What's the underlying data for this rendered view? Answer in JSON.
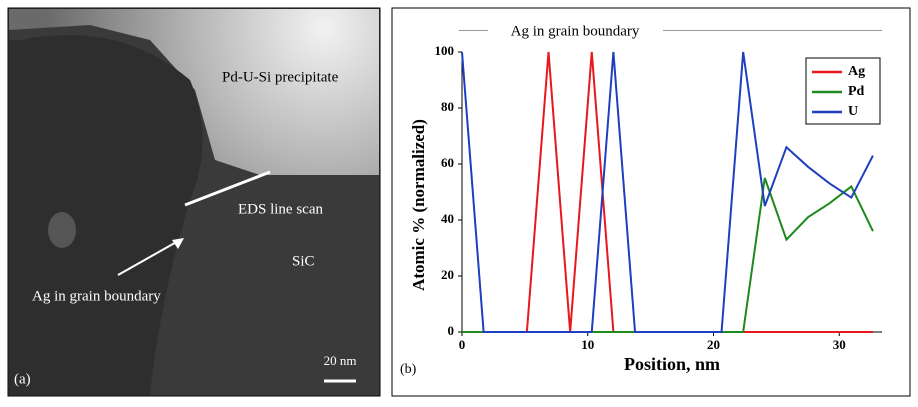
{
  "image_panel": {
    "labels": [
      "Pd-U-Si precipitate",
      "EDS line scan",
      "SiC",
      "Ag in grain boundary",
      "20 nm"
    ],
    "panel_label": "(a)"
  },
  "chart_data": {
    "type": "line",
    "title": "Ag in grain boundary",
    "panel_label": "(b)",
    "x_label": "Position, nm",
    "y_label": "Atomic % (normalized)",
    "x": [
      0,
      1.72,
      3.44,
      5.16,
      6.88,
      8.6,
      10.32,
      12.04,
      13.76,
      15.48,
      17.2,
      18.92,
      20.64,
      22.36,
      24.08,
      25.8,
      27.52,
      29.24,
      30.96,
      32.68
    ],
    "series": [
      {
        "name": "Ag",
        "color": "#e8171d",
        "values": [
          0,
          0,
          0,
          0,
          100,
          0,
          100,
          0,
          0,
          0,
          0,
          0,
          0,
          0,
          0,
          0,
          0,
          0,
          0,
          0
        ]
      },
      {
        "name": "Pd",
        "color": "#1e8a1e",
        "values": [
          0,
          0,
          0,
          0,
          0,
          0,
          0,
          0,
          0,
          0,
          0,
          0,
          0,
          0,
          55,
          33,
          41,
          46,
          52,
          36
        ]
      },
      {
        "name": "U",
        "color": "#1f3fbf",
        "values": [
          100,
          0,
          0,
          0,
          0,
          0,
          0,
          100,
          0,
          0,
          0,
          0,
          0,
          100,
          45,
          66,
          59,
          53,
          48,
          63
        ]
      }
    ],
    "xlim": [
      0,
      33.4
    ],
    "xticks": [
      0,
      10,
      20,
      30
    ],
    "ylim": [
      0,
      100
    ],
    "yticks": [
      0,
      20,
      40,
      60,
      80,
      100
    ],
    "legend": "upper right"
  }
}
